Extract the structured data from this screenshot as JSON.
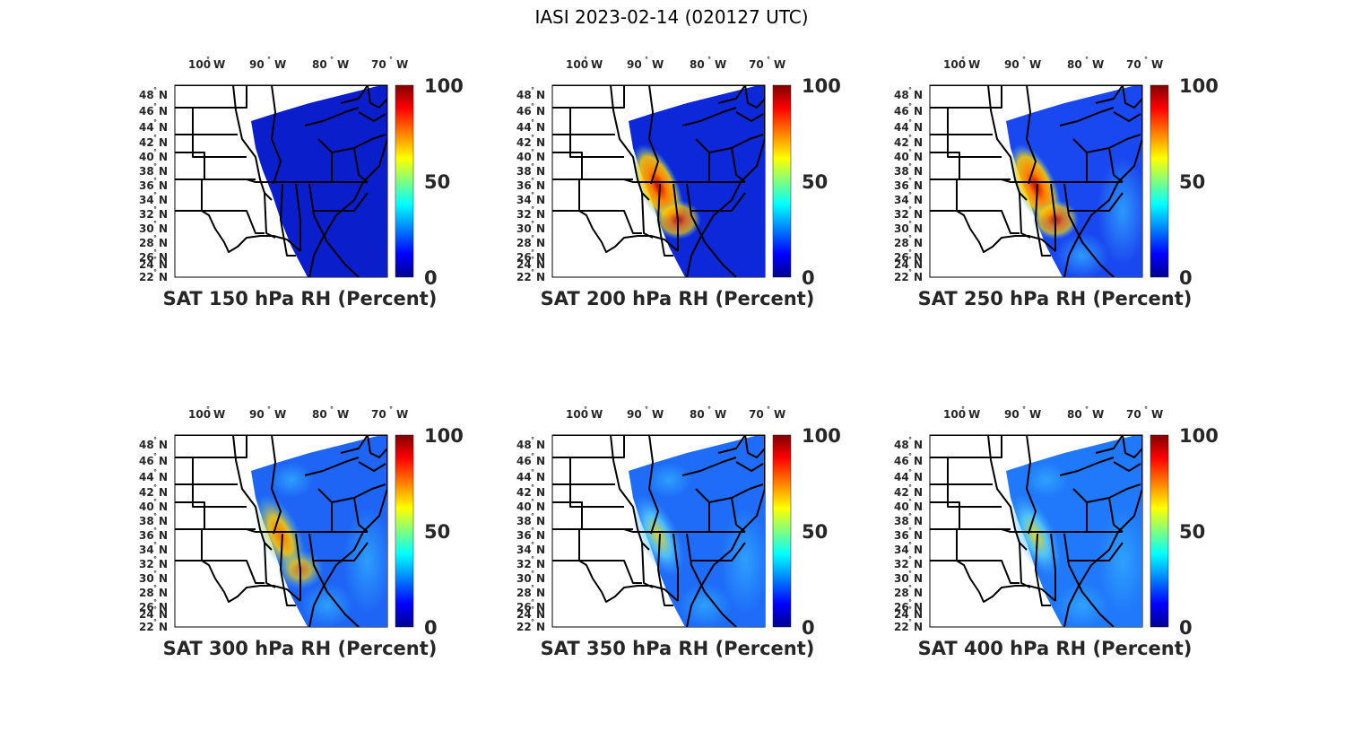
{
  "figure_title": "IASI 2023-02-14 (020127 UTC)",
  "colorbar": {
    "ticks": [
      "100",
      "50",
      "0"
    ],
    "colormap": "jet",
    "stops": [
      "#00008f",
      "#0000ff",
      "#00ffff",
      "#ffff00",
      "#ff0000",
      "#800000"
    ]
  },
  "map": {
    "lon_labels": [
      "100",
      "90",
      "80",
      "70"
    ],
    "lon_suffix": "W",
    "lat_labels": [
      "48",
      "46",
      "44",
      "42",
      "40",
      "38",
      "36",
      "34",
      "32",
      "30",
      "28",
      "26",
      "24",
      "22"
    ],
    "lat_suffix": "N",
    "degree_symbol": "°"
  },
  "panels": [
    {
      "id": "p150",
      "label": "SAT 150 hPa RH (Percent)",
      "level_hpa": 150,
      "base_color": "#0a1ecc",
      "moist_band": "none"
    },
    {
      "id": "p200",
      "label": "SAT 200 hPa RH (Percent)",
      "level_hpa": 200,
      "base_color": "#0c28d8",
      "moist_band": "strong"
    },
    {
      "id": "p250",
      "label": "SAT 250 hPa RH (Percent)",
      "level_hpa": 250,
      "base_color": "#1a48f0",
      "moist_band": "strong"
    },
    {
      "id": "p300",
      "label": "SAT 300 hPa RH (Percent)",
      "level_hpa": 300,
      "base_color": "#1e64f5",
      "moist_band": "moderate"
    },
    {
      "id": "p350",
      "label": "SAT 350 hPa RH (Percent)",
      "level_hpa": 350,
      "base_color": "#1e6cf8",
      "moist_band": "weak"
    },
    {
      "id": "p400",
      "label": "SAT 400 hPa RH (Percent)",
      "level_hpa": 400,
      "base_color": "#2078fa",
      "moist_band": "weak"
    }
  ]
}
